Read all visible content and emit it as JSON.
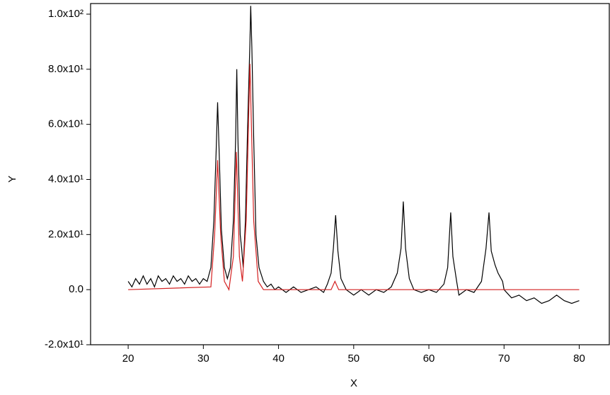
{
  "chart_data": {
    "type": "line",
    "xlabel": "X",
    "ylabel": "Y",
    "xlim": [
      15,
      84
    ],
    "ylim": [
      -20,
      100
    ],
    "xticks": [
      20,
      30,
      40,
      50,
      60,
      70,
      80
    ],
    "yticks": [
      {
        "value": -20,
        "label": "-2.0x10¹"
      },
      {
        "value": 0,
        "label": "0.0"
      },
      {
        "value": 20,
        "label": "2.0x10¹"
      },
      {
        "value": 40,
        "label": "4.0x10¹"
      },
      {
        "value": 60,
        "label": "6.0x10¹"
      },
      {
        "value": 80,
        "label": "8.0x10¹"
      },
      {
        "value": 100,
        "label": "1.0x10²"
      }
    ],
    "series": [
      {
        "color": "#000000",
        "x": [
          20,
          20.5,
          21,
          21.5,
          22,
          22.5,
          23,
          23.5,
          24,
          24.5,
          25,
          25.5,
          26,
          26.5,
          27,
          27.5,
          28,
          28.5,
          29,
          29.5,
          30,
          30.5,
          31,
          31.4,
          31.7,
          31.9,
          32.1,
          32.4,
          32.8,
          33.2,
          33.6,
          34,
          34.3,
          34.45,
          34.6,
          34.9,
          35.1,
          35.3,
          35.6,
          35.9,
          36.2,
          36.3,
          36.45,
          36.7,
          37,
          37.4,
          38,
          38.5,
          39,
          39.5,
          40,
          41,
          42,
          43,
          44,
          45,
          46,
          46.5,
          47,
          47.3,
          47.6,
          47.9,
          48.3,
          49,
          50,
          51,
          52,
          53,
          54,
          55,
          55.8,
          56.3,
          56.6,
          56.9,
          57.4,
          58,
          59,
          60,
          61,
          62,
          62.5,
          62.9,
          63.2,
          63.7,
          64,
          65,
          66,
          67,
          67.6,
          68,
          68.3,
          68.8,
          69.2,
          69.8,
          70,
          71,
          72,
          73,
          74,
          75,
          76,
          77,
          78,
          79,
          80
        ],
        "values": [
          3,
          1,
          4,
          2,
          5,
          2,
          4,
          1,
          5,
          3,
          4,
          2,
          5,
          3,
          4,
          2,
          5,
          3,
          4,
          2,
          4,
          3,
          8,
          25,
          50,
          68,
          50,
          22,
          8,
          4,
          8,
          25,
          55,
          80,
          55,
          20,
          15,
          8,
          25,
          60,
          90,
          103,
          88,
          55,
          20,
          8,
          3,
          1,
          2,
          0,
          1,
          -1,
          1,
          -1,
          0,
          1,
          -1,
          2,
          6,
          15,
          27,
          14,
          4,
          0,
          -2,
          0,
          -2,
          0,
          -1,
          1,
          6,
          15,
          32,
          15,
          4,
          0,
          -1,
          0,
          -1,
          2,
          8,
          28,
          12,
          3,
          -2,
          0,
          -1,
          3,
          15,
          28,
          14,
          9,
          6,
          3,
          0,
          -3,
          -2,
          -4,
          -3,
          -5,
          -4,
          -2,
          -4,
          -5,
          -4
        ]
      },
      {
        "color": "#d42020",
        "x": [
          20,
          31,
          31.5,
          31.9,
          32.3,
          32.8,
          33.4,
          34,
          34.4,
          34.8,
          35.2,
          35.7,
          36.2,
          36.7,
          37.3,
          38,
          47,
          47.5,
          48,
          80
        ],
        "values": [
          0,
          1,
          20,
          47,
          20,
          3,
          0,
          12,
          50,
          12,
          3,
          25,
          82,
          25,
          3,
          0,
          0,
          3,
          0,
          0
        ]
      }
    ]
  }
}
